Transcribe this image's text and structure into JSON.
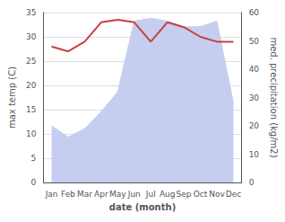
{
  "chart_data": {
    "type": "line",
    "xlabel": "date (month)",
    "ylabel": "max temp (C)",
    "y2label": "med. precipitation (kg/m2)",
    "categories": [
      "Jan",
      "Feb",
      "Mar",
      "Apr",
      "May",
      "Jun",
      "Jul",
      "Aug",
      "Sep",
      "Oct",
      "Nov",
      "Dec"
    ],
    "series": [
      {
        "type": "area",
        "axis": "y2",
        "color": "#c5cef0",
        "values": [
          20,
          16,
          19,
          25,
          32,
          57,
          58,
          57,
          55,
          55,
          57,
          28
        ]
      },
      {
        "type": "line",
        "color": "#c94040",
        "values": [
          28.0,
          27.0,
          29.0,
          33.0,
          33.5,
          33.0,
          29.0,
          33.0,
          32.0,
          30.0,
          29.0,
          29.0
        ]
      }
    ],
    "ylim": [
      0,
      35
    ],
    "yticks": [
      0,
      5,
      10,
      15,
      20,
      25,
      30,
      35
    ],
    "y2lim": [
      0,
      60
    ],
    "y2ticks": [
      0,
      10,
      20,
      30,
      40,
      50,
      60
    ],
    "grid": true
  }
}
